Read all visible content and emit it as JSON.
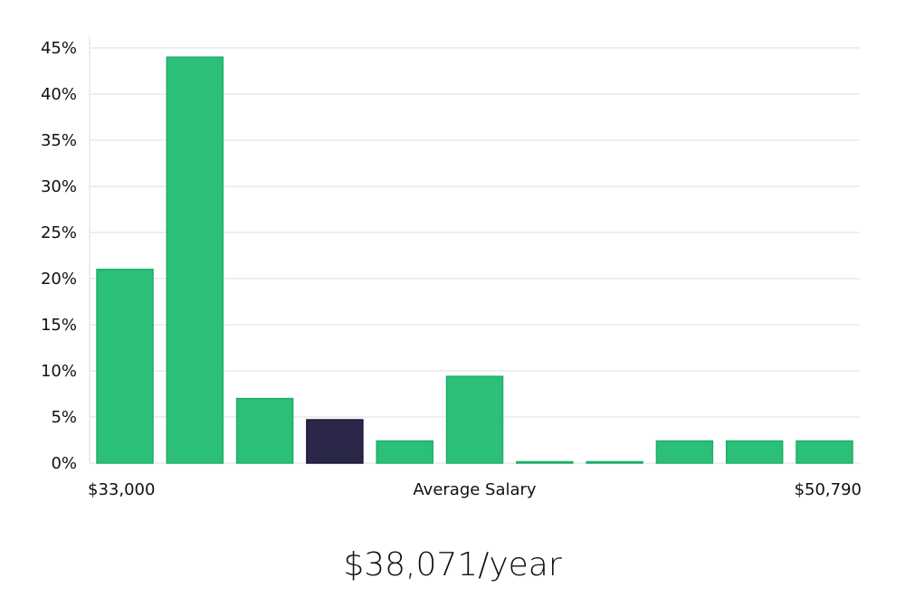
{
  "chart_data": {
    "type": "bar",
    "title": "",
    "xlabel": "Average Salary",
    "ylabel": "",
    "x_min_label": "$33,000",
    "x_max_label": "$50,790",
    "ylim": [
      0,
      45
    ],
    "y_ticks": [
      0,
      5,
      10,
      15,
      20,
      25,
      30,
      35,
      40,
      45
    ],
    "y_tick_labels": [
      "0%",
      "5%",
      "10%",
      "15%",
      "20%",
      "25%",
      "30%",
      "35%",
      "40%",
      "45%"
    ],
    "values": [
      21,
      44,
      7,
      4.7,
      2.4,
      9.4,
      0.15,
      0.15,
      2.4,
      2.4,
      2.4
    ],
    "highlight_index": 3,
    "grid": true
  },
  "colors": {
    "bar": "#2bbf78",
    "bar_stroke": "#1fae68",
    "highlight": "#2a2748",
    "highlight_stroke": "#18163a"
  },
  "summary": {
    "value": "$38,071/year"
  }
}
